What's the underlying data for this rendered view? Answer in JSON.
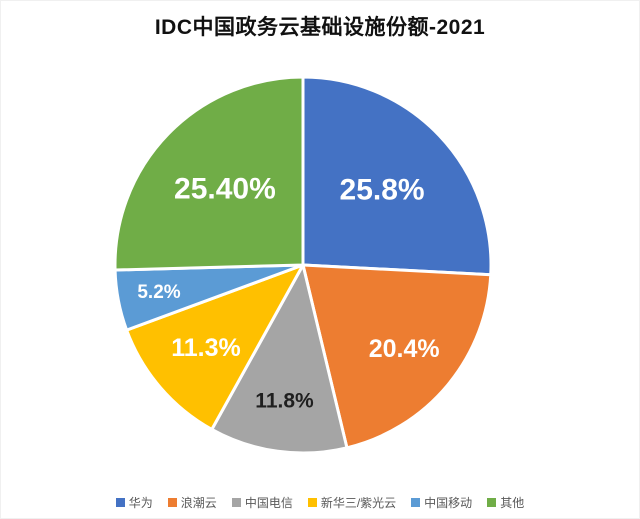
{
  "title": "IDC中国政务云基础设施份额-2021",
  "chart_data": {
    "type": "pie",
    "title": "IDC中国政务云基础设施份额-2021",
    "categories": [
      "华为",
      "浪潮云",
      "中国电信",
      "新华三/紫光云",
      "中国移动",
      "其他"
    ],
    "values": [
      25.8,
      20.4,
      11.8,
      11.3,
      5.2,
      25.4
    ],
    "labels": [
      "25.8%",
      "20.4%",
      "11.8%",
      "11.3%",
      "5.2%",
      "25.40%"
    ],
    "colors": [
      "#4472C4",
      "#ED7D31",
      "#A5A5A5",
      "#FFC000",
      "#5B9BD5",
      "#70AD47"
    ],
    "label_colors": [
      "#FFFFFF",
      "#FFFFFF",
      "#1F1F1F",
      "#FFFFFF",
      "#FFFFFF",
      "#FFFFFF"
    ],
    "legend_position": "bottom",
    "start_angle_deg": 0,
    "direction": "clockwise",
    "grid": false
  }
}
